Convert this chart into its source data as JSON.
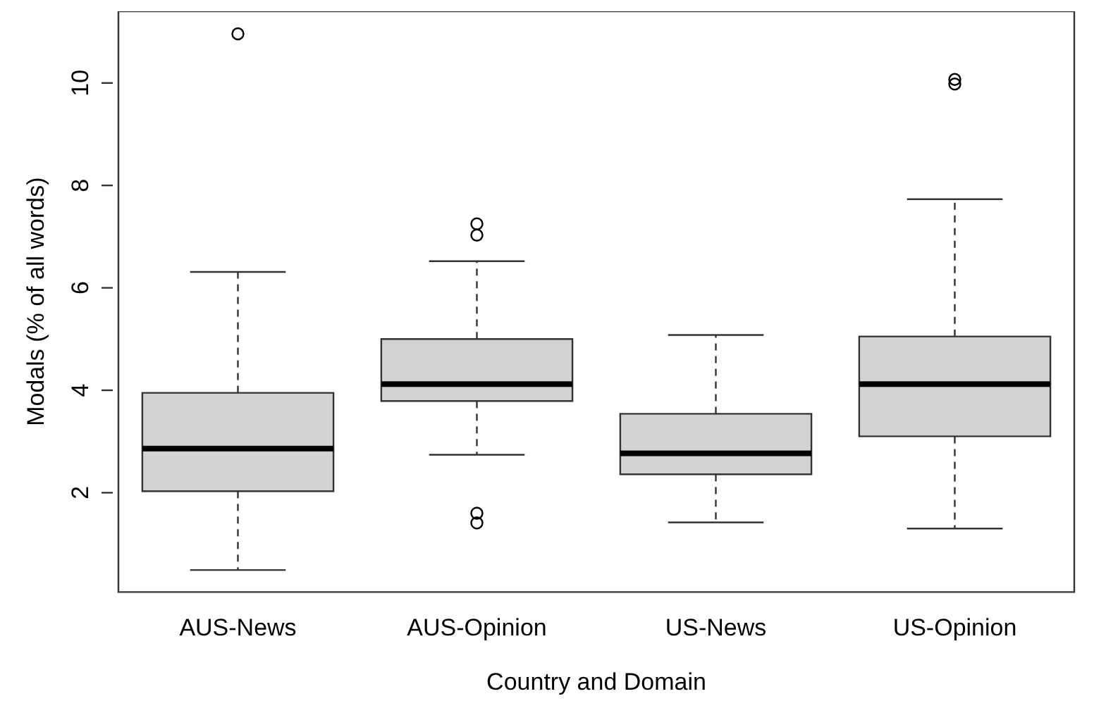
{
  "chart_data": {
    "type": "box",
    "xlabel": "Country and Domain",
    "ylabel": "Modals (% of all words)",
    "categories": [
      "AUS-News",
      "AUS-Opinion",
      "US-News",
      "US-Opinion"
    ],
    "color": "#d3d3d3",
    "boxes": [
      {
        "low": 0.49,
        "q1": 2.03,
        "median": 2.86,
        "q3": 3.95,
        "high": 6.31,
        "outliers": [
          10.96
        ]
      },
      {
        "low": 2.74,
        "q1": 3.79,
        "median": 4.12,
        "q3": 5.0,
        "high": 6.52,
        "outliers": [
          7.25,
          7.03,
          1.6,
          1.41
        ]
      },
      {
        "low": 1.42,
        "q1": 2.36,
        "median": 2.77,
        "q3": 3.54,
        "high": 5.08
      },
      {
        "low": 1.3,
        "q1": 3.1,
        "median": 4.12,
        "q3": 5.05,
        "high": 7.73,
        "outliers": [
          10.07,
          9.98
        ]
      }
    ],
    "ylim": [
      0.06,
      11.4
    ],
    "yticks": [
      2,
      4,
      6,
      8,
      10
    ]
  }
}
